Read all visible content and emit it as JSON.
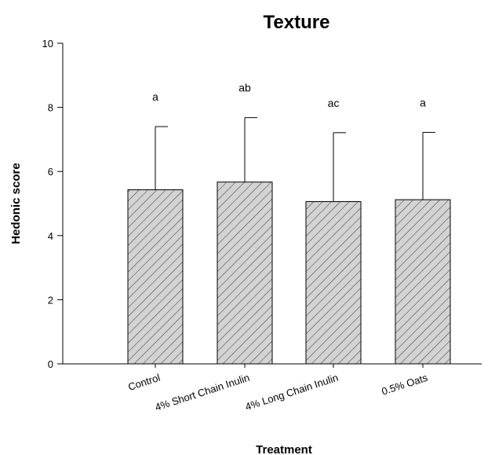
{
  "chart_data": {
    "type": "bar",
    "title": "Texture",
    "xlabel": "Treatment",
    "ylabel": "Hedonic score",
    "categories": [
      "Control",
      "4% Short Chain Inulin",
      "4% Long Chain Inulin",
      "0.5% Oats"
    ],
    "values": [
      5.43,
      5.67,
      5.06,
      5.12
    ],
    "error_upper": [
      7.4,
      7.68,
      7.21,
      7.22
    ],
    "annotations": [
      "a",
      "ab",
      "ac",
      "a"
    ],
    "ylim": [
      0,
      10
    ],
    "yticks": [
      0,
      2,
      4,
      6,
      8,
      10
    ],
    "grid": false,
    "bar_fill": "#d3d3d3",
    "hatch": "diagonal"
  }
}
